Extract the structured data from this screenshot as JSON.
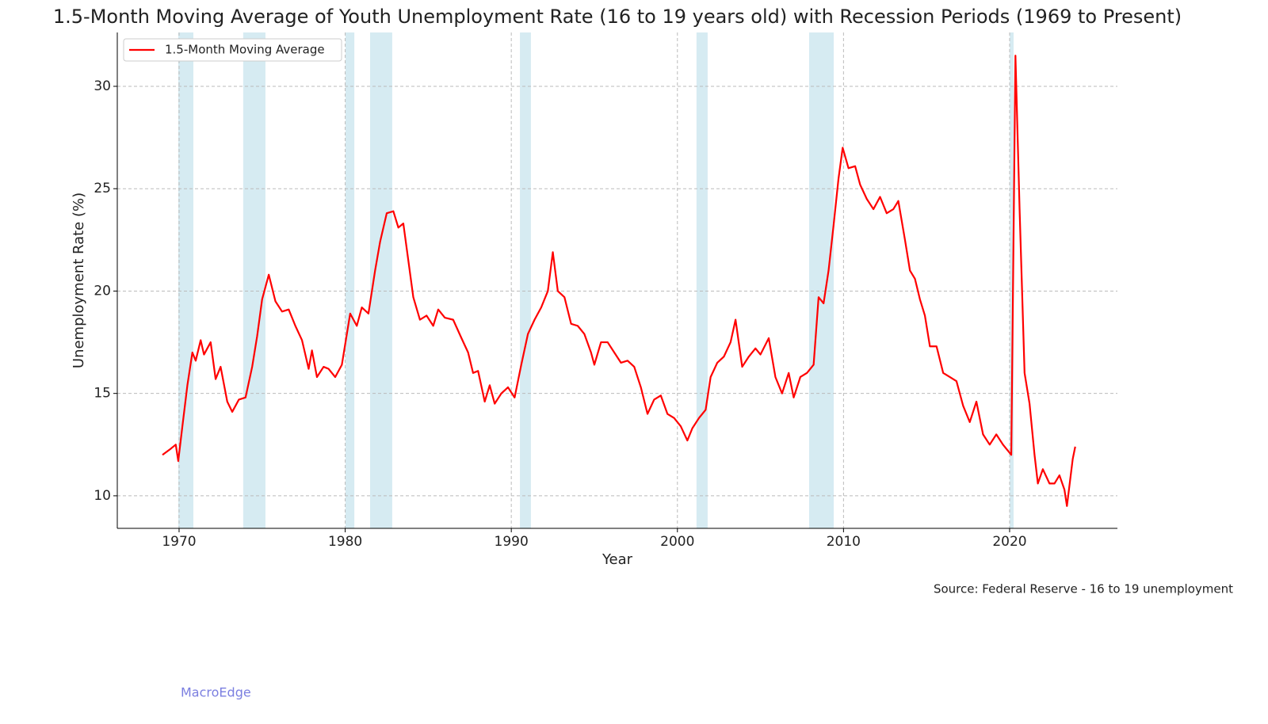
{
  "chart_data": {
    "type": "line",
    "title": "1.5-Month Moving Average of Youth Unemployment Rate (16 to 19 years old) with Recession Periods (1969 to Present)",
    "x_label": "Year",
    "y_label": "Unemployment Rate (%)",
    "source": "Source: Federal Reserve - 16 to 19 unemployment",
    "watermark": "MacroEdge",
    "x": [
      1969.0,
      1969.5,
      1969.8,
      1969.95,
      1970.2,
      1970.5,
      1970.8,
      1971.0,
      1971.3,
      1971.5,
      1971.9,
      1972.2,
      1972.5,
      1972.9,
      1973.2,
      1973.6,
      1974.0,
      1974.4,
      1974.7,
      1975.0,
      1975.4,
      1975.8,
      1976.2,
      1976.6,
      1977.0,
      1977.4,
      1977.8,
      1978.0,
      1978.3,
      1978.7,
      1979.0,
      1979.4,
      1979.8,
      1980.3,
      1980.7,
      1981.0,
      1981.4,
      1981.8,
      1982.1,
      1982.5,
      1982.9,
      1983.2,
      1983.5,
      1983.8,
      1984.1,
      1984.5,
      1984.9,
      1985.3,
      1985.6,
      1986.0,
      1986.5,
      1987.0,
      1987.4,
      1987.7,
      1988.0,
      1988.4,
      1988.7,
      1989.0,
      1989.4,
      1989.8,
      1990.2,
      1990.6,
      1991.0,
      1991.4,
      1991.8,
      1992.2,
      1992.5,
      1992.8,
      1993.2,
      1993.6,
      1994.0,
      1994.4,
      1994.8,
      1995.0,
      1995.4,
      1995.8,
      1996.2,
      1996.6,
      1997.0,
      1997.4,
      1997.8,
      1998.2,
      1998.6,
      1999.0,
      1999.4,
      1999.8,
      2000.2,
      2000.6,
      2000.9,
      2001.3,
      2001.7,
      2002.0,
      2002.4,
      2002.8,
      2003.2,
      2003.5,
      2003.9,
      2004.3,
      2004.7,
      2005.0,
      2005.5,
      2005.9,
      2006.3,
      2006.7,
      2007.0,
      2007.4,
      2007.8,
      2008.2,
      2008.5,
      2008.8,
      2009.1,
      2009.4,
      2009.7,
      2009.95,
      2010.3,
      2010.7,
      2011.0,
      2011.4,
      2011.8,
      2012.2,
      2012.6,
      2013.0,
      2013.3,
      2013.7,
      2014.0,
      2014.3,
      2014.6,
      2014.9,
      2015.2,
      2015.6,
      2016.0,
      2016.4,
      2016.8,
      2017.2,
      2017.6,
      2018.0,
      2018.4,
      2018.8,
      2019.2,
      2019.6,
      2019.9,
      2020.1,
      2020.35,
      2020.6,
      2020.9,
      2021.2,
      2021.5,
      2021.7,
      2022.0,
      2022.4,
      2022.7,
      2023.0,
      2023.3,
      2023.45,
      2023.8,
      2023.95
    ],
    "series": [
      {
        "name": "1.5-Month Moving Average",
        "color": "#ff0000",
        "values": [
          12.0,
          12.3,
          12.5,
          11.7,
          13.4,
          15.4,
          17.0,
          16.6,
          17.6,
          16.9,
          17.5,
          15.7,
          16.3,
          14.6,
          14.1,
          14.7,
          14.8,
          16.3,
          17.8,
          19.6,
          20.8,
          19.5,
          19.0,
          19.1,
          18.3,
          17.6,
          16.2,
          17.1,
          15.8,
          16.3,
          16.2,
          15.8,
          16.4,
          18.9,
          18.3,
          19.2,
          18.9,
          21.0,
          22.4,
          23.8,
          23.9,
          23.1,
          23.3,
          21.5,
          19.7,
          18.6,
          18.8,
          18.3,
          19.1,
          18.7,
          18.6,
          17.7,
          17.0,
          16.0,
          16.1,
          14.6,
          15.4,
          14.5,
          15.0,
          15.3,
          14.8,
          16.4,
          17.9,
          18.6,
          19.2,
          20.0,
          21.9,
          20.0,
          19.7,
          18.4,
          18.3,
          17.9,
          17.0,
          16.4,
          17.5,
          17.5,
          17.0,
          16.5,
          16.6,
          16.3,
          15.3,
          14.0,
          14.7,
          14.9,
          14.0,
          13.8,
          13.4,
          12.7,
          13.3,
          13.8,
          14.2,
          15.8,
          16.5,
          16.8,
          17.5,
          18.6,
          16.3,
          16.8,
          17.2,
          16.9,
          17.7,
          15.8,
          15.0,
          16.0,
          14.8,
          15.8,
          16.0,
          16.4,
          19.7,
          19.4,
          21.0,
          23.2,
          25.5,
          27.0,
          26.0,
          26.1,
          25.2,
          24.5,
          24.0,
          24.6,
          23.8,
          24.0,
          24.4,
          22.5,
          21.0,
          20.6,
          19.6,
          18.8,
          17.3,
          17.3,
          16.0,
          15.8,
          15.6,
          14.4,
          13.6,
          14.6,
          13.0,
          12.5,
          13.0,
          12.5,
          12.2,
          12.0,
          31.5,
          24.0,
          16.0,
          14.5,
          12.0,
          10.6,
          11.3,
          10.6,
          10.6,
          11.0,
          10.3,
          9.5,
          11.8,
          12.4
        ]
      }
    ],
    "recessions": [
      [
        1969.95,
        1970.86
      ],
      [
        1973.86,
        1975.2
      ],
      [
        1980.02,
        1980.55
      ],
      [
        1981.5,
        1982.83
      ],
      [
        1990.52,
        1991.18
      ],
      [
        2001.15,
        2001.82
      ],
      [
        2007.93,
        2009.41
      ],
      [
        2020.0,
        2020.24
      ]
    ],
    "recession_color": "#add8e6",
    "xlim": [
      1966.28,
      2026.49
    ],
    "ylim": [
      8.41,
      32.63
    ],
    "xticks": [
      1970,
      1980,
      1990,
      2000,
      2010,
      2020
    ],
    "yticks": [
      10,
      15,
      20,
      25,
      30
    ],
    "grid": true,
    "legend": "upper left"
  }
}
